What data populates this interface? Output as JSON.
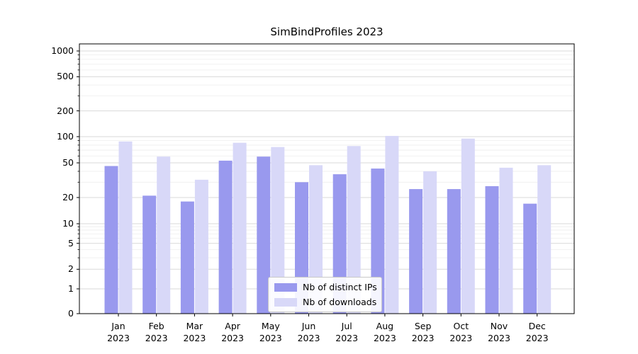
{
  "chart_data": {
    "type": "bar",
    "title": "SimBindProfiles 2023",
    "xlabel": "",
    "ylabel": "",
    "y_scale": "symlog",
    "grid": "horizontal",
    "legend_position": "lower center",
    "y_ticks": [
      0,
      1,
      2,
      5,
      10,
      20,
      50,
      100,
      200,
      500,
      1000
    ],
    "categories": [
      "Jan 2023",
      "Feb 2023",
      "Mar 2023",
      "Apr 2023",
      "May 2023",
      "Jun 2023",
      "Jul 2023",
      "Aug 2023",
      "Sep 2023",
      "Oct 2023",
      "Nov 2023",
      "Dec 2023"
    ],
    "series": [
      {
        "name": "Nb of distinct IPs",
        "color": "#9999ee",
        "values": [
          46,
          21,
          18,
          53,
          59,
          30,
          37,
          43,
          25,
          25,
          27,
          17
        ]
      },
      {
        "name": "Nb of downloads",
        "color": "#d8d8f8",
        "values": [
          88,
          59,
          32,
          85,
          76,
          47,
          78,
          102,
          40,
          95,
          44,
          47
        ]
      }
    ]
  }
}
